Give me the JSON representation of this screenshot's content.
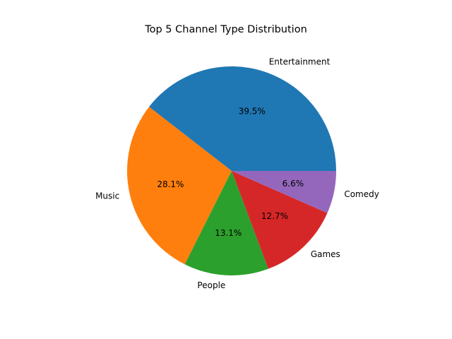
{
  "chart_data": {
    "type": "pie",
    "title": "Top 5 Channel Type Distribution",
    "categories": [
      "Entertainment",
      "Music",
      "People",
      "Games",
      "Comedy"
    ],
    "values": [
      39.5,
      28.1,
      13.1,
      12.7,
      6.6
    ],
    "percent_labels": [
      "39.5%",
      "28.1%",
      "13.1%",
      "12.7%",
      "6.6%"
    ],
    "colors": [
      "#1f77b4",
      "#ff7f0e",
      "#2ca02c",
      "#d62728",
      "#9467bd"
    ],
    "start_angle_deg": 0,
    "direction": "counterclockwise",
    "legend": "none"
  }
}
